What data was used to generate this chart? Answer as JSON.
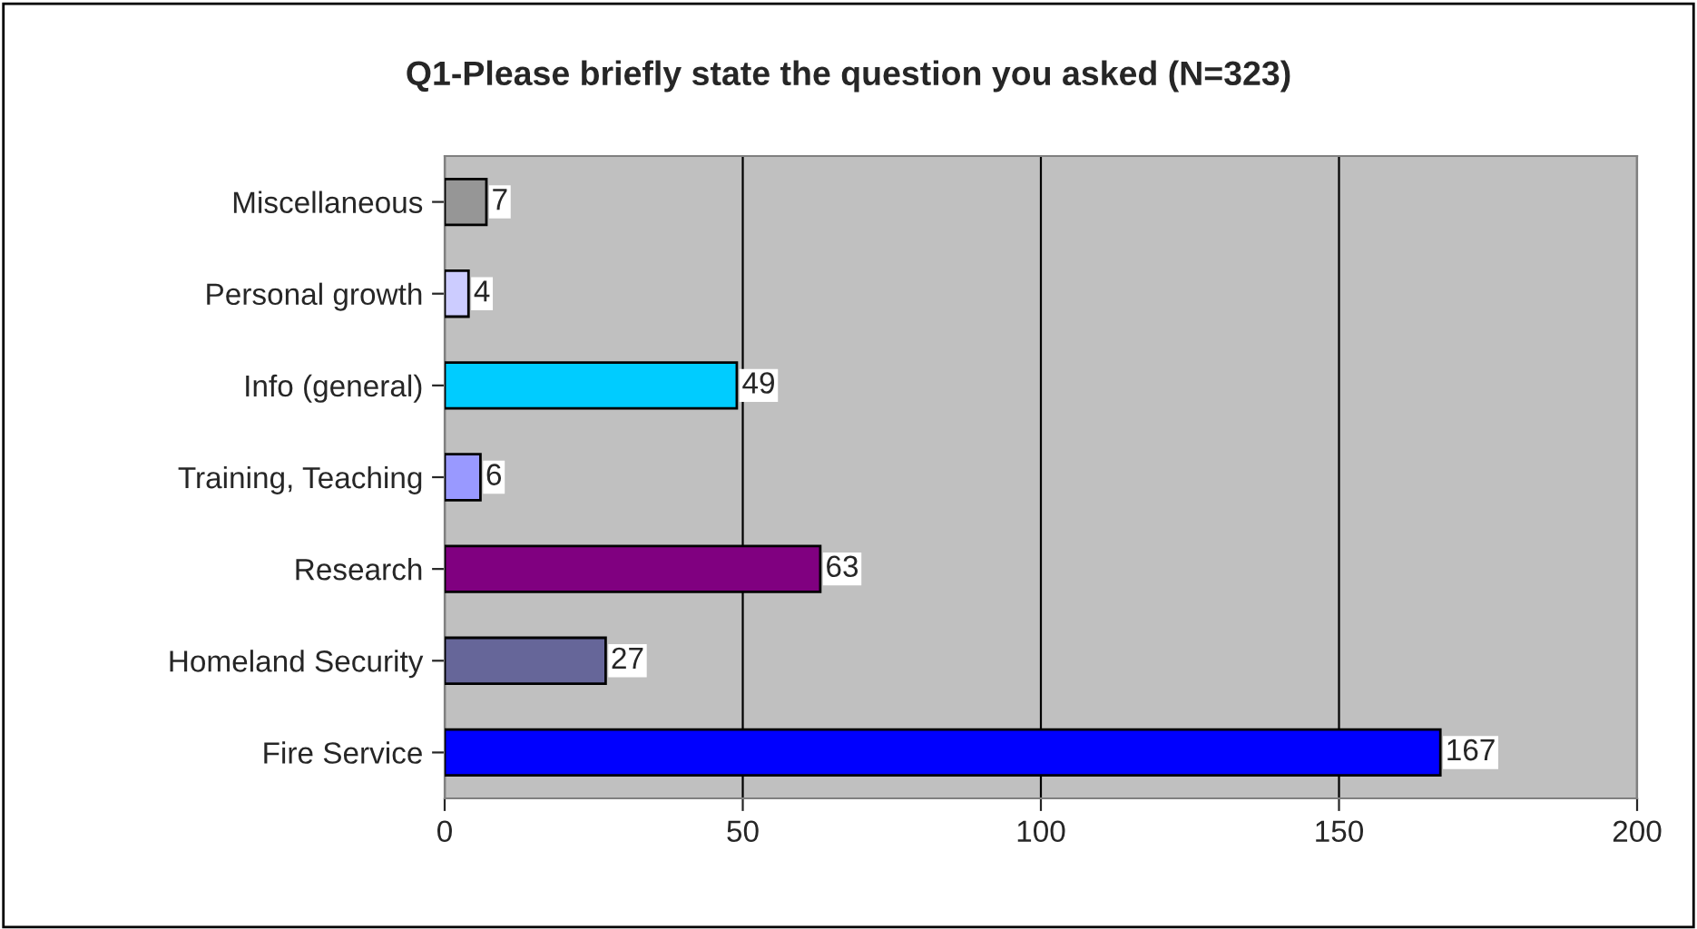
{
  "chart_data": {
    "type": "bar",
    "orientation": "horizontal",
    "title": "Q1-Please briefly state the question you asked (N=323)",
    "categories": [
      "Miscellaneous",
      "Personal growth",
      "Info (general)",
      "Training, Teaching",
      "Research",
      "Homeland Security",
      "Fire Service"
    ],
    "values": [
      7,
      4,
      49,
      6,
      63,
      27,
      167
    ],
    "colors": [
      "#969696",
      "#ccccff",
      "#00ccff",
      "#9999ff",
      "#800080",
      "#666699",
      "#0000ff"
    ],
    "xlim": [
      0,
      200
    ],
    "xticks": [
      0,
      50,
      100,
      150,
      200
    ],
    "grid": "x",
    "data_labels": true,
    "legend": false
  }
}
